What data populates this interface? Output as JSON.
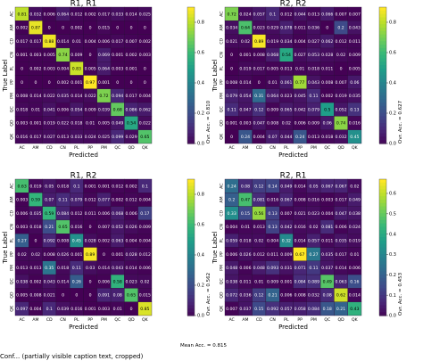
{
  "footer_caption": "Conf... (partially visible caption text, cropped)",
  "mean_accuracy": "Mean Acc. = 0.815",
  "chart_data": [
    {
      "type": "heatmap",
      "title": "R1, R1",
      "xlabel": "Predicted",
      "ylabel": "True Label",
      "labels": [
        "AC",
        "AM",
        "CD",
        "CN",
        "PL",
        "PP",
        "PM",
        "QC",
        "QD",
        "QK"
      ],
      "overall_accuracy": "Ovr. Acc. = 0.810",
      "colorbar_ticks": [
        "0.0",
        "0.2",
        "0.4",
        "0.6",
        "0.8"
      ],
      "vmax": 0.9,
      "matrix": [
        [
          "0.81",
          "0.032",
          "0.006",
          "0.064",
          "0.012",
          "0.002",
          "0.017",
          "0.033",
          "0.014",
          "0.025"
        ],
        [
          "0.002",
          "0.87",
          "0",
          "0",
          "0.002",
          "0",
          "0.015",
          "0",
          "0",
          "0"
        ],
        [
          "0.017",
          "0.017",
          "0.88",
          "0.014",
          "0.01",
          "0.004",
          "0.006",
          "0.017",
          "0.007",
          "0.002"
        ],
        [
          "0.001",
          "0.003",
          "0.005",
          "0.74",
          "0.009",
          "0",
          "0.069",
          "0.001",
          "0.002",
          "0.003"
        ],
        [
          "0",
          "0.002",
          "0.003",
          "0.004",
          "0.83",
          "0.005",
          "0.064",
          "0.003",
          "0.001",
          "0"
        ],
        [
          "0",
          "0",
          "0",
          "0.002",
          "0.001",
          "0.97",
          "0.001",
          "0",
          "0",
          "0"
        ],
        [
          "0.008",
          "0.014",
          "0.022",
          "0.035",
          "0.014",
          "0.022",
          "0.72",
          "0.094",
          "0.017",
          "0.004"
        ],
        [
          "0.018",
          "0.01",
          "0.041",
          "0.006",
          "0.054",
          "0.009",
          "0.039",
          "0.68",
          "0.086",
          "0.062"
        ],
        [
          "0.003",
          "0.001",
          "0.019",
          "0.022",
          "0.018",
          "0.01",
          "0.005",
          "0.049",
          "0.54",
          "0.022"
        ],
        [
          "0.016",
          "0.017",
          "0.027",
          "0.013",
          "0.033",
          "0.024",
          "0.025",
          "0.099",
          "0.029",
          "0.65"
        ]
      ]
    },
    {
      "type": "heatmap",
      "title": "R2, R2",
      "xlabel": "Predicted",
      "ylabel": "True Label",
      "labels": [
        "AC",
        "AM",
        "CD",
        "CN",
        "PL",
        "PP",
        "PM",
        "QC",
        "QD",
        "QK"
      ],
      "overall_accuracy": "Ovr. Acc. = 0.627",
      "colorbar_ticks": [
        "0.0",
        "0.2",
        "0.4",
        "0.6",
        "0.8"
      ],
      "vmax": 0.9,
      "matrix": [
        [
          "0.72",
          "0.024",
          "0.057",
          "0.1",
          "0.012",
          "0.044",
          "0.013",
          "0.066",
          "0.007",
          "0.007"
        ],
        [
          "0.034",
          "0.64",
          "0.023",
          "0.029",
          "0.078",
          "0.011",
          "0.036",
          "0",
          "0.2",
          "0.043"
        ],
        [
          "0.021",
          "0.02",
          "0.89",
          "0.019",
          "0.034",
          "0.004",
          "0.027",
          "0.062",
          "0.012",
          "0.011"
        ],
        [
          "0",
          "0.001",
          "0.008",
          "0.068",
          "0.54",
          "0.027",
          "0.053",
          "0.028",
          "0.02",
          "0.009"
        ],
        [
          "0",
          "0.019",
          "0.017",
          "0.005",
          "0.013",
          "0.01",
          "0.018",
          "0.011",
          "0",
          "0.005"
        ],
        [
          "0.008",
          "0.014",
          "0",
          "0.01",
          "0.061",
          "0.77",
          "0.043",
          "0.008",
          "0.007",
          "0.06"
        ],
        [
          "0.079",
          "0.054",
          "0.31",
          "0.064",
          "0.023",
          "0.045",
          "0.11",
          "0.002",
          "0.019",
          "0.035"
        ],
        [
          "0.11",
          "0.047",
          "0.12",
          "0.009",
          "0.065",
          "0.042",
          "0.079",
          "0.5",
          "0.052",
          "0.13"
        ],
        [
          "0.001",
          "0.003",
          "0.047",
          "0.008",
          "0.02",
          "0.006",
          "0.009",
          "0.06",
          "0.74",
          "0.016"
        ],
        [
          "0",
          "0.24",
          "0.004",
          "0.07",
          "0.044",
          "0.24",
          "0.013",
          "0.018",
          "0.032",
          "0.45"
        ]
      ]
    },
    {
      "type": "heatmap",
      "title": "R1, R2",
      "xlabel": "Predicted",
      "ylabel": "True Label",
      "labels": [
        "AC",
        "AM",
        "CD",
        "CN",
        "PL",
        "PP",
        "PM",
        "QC",
        "QD",
        "QK"
      ],
      "overall_accuracy": "Ovr. Acc. = 0.562",
      "colorbar_ticks": [
        "0.0",
        "0.2",
        "0.4",
        "0.6",
        "0.8"
      ],
      "vmax": 0.9,
      "matrix": [
        [
          "0.63",
          "0.019",
          "0.05",
          "0.018",
          "0.1",
          "0.001",
          "0.001",
          "0.012",
          "0.002",
          "0.1"
        ],
        [
          "0.003",
          "0.59",
          "0.07",
          "0.11",
          "0.079",
          "0.012",
          "0.077",
          "0.002",
          "0.012",
          "0.004"
        ],
        [
          "0.006",
          "0.035",
          "0.59",
          "0.084",
          "0.012",
          "0.011",
          "0.006",
          "0.068",
          "0.006",
          "0.17"
        ],
        [
          "0.003",
          "0.018",
          "0.21",
          "0.65",
          "0.016",
          "0",
          "0.007",
          "0.052",
          "0.026",
          "0.009"
        ],
        [
          "0.27",
          "0",
          "0.092",
          "0.008",
          "0.45",
          "0.028",
          "0.002",
          "0.063",
          "0.004",
          "0.004"
        ],
        [
          "0.02",
          "0.02",
          "0.008",
          "0.026",
          "0.001",
          "0.89",
          "0",
          "0.001",
          "0.028",
          "0.012"
        ],
        [
          "0.013",
          "0.013",
          "0.35",
          "0.018",
          "0.11",
          "0.03",
          "0.014",
          "0.043",
          "0.014",
          "0.006"
        ],
        [
          "0.038",
          "0.002",
          "0.043",
          "0.014",
          "0.26",
          "0",
          "0.006",
          "0.58",
          "0.023",
          "0.02"
        ],
        [
          "0.005",
          "0.008",
          "0.021",
          "0",
          "0",
          "0",
          "0.091",
          "0.08",
          "0.65",
          "0.015"
        ],
        [
          "0.097",
          "0.004",
          "0.1",
          "0.039",
          "0.016",
          "0.001",
          "0.003",
          "0.01",
          "0",
          "0.85"
        ]
      ]
    },
    {
      "type": "heatmap",
      "title": "R2, R1",
      "xlabel": "Predicted",
      "ylabel": "True Label",
      "labels": [
        "AC",
        "AM",
        "CD",
        "CN",
        "PL",
        "PP",
        "PM",
        "QC",
        "QD",
        "QK"
      ],
      "overall_accuracy": "Ovr. Acc. = 0.453",
      "colorbar_ticks": [
        "0.0",
        "0.1",
        "0.2",
        "0.3",
        "0.4",
        "0.5",
        "0.6"
      ],
      "vmax": 0.67,
      "matrix": [
        [
          "0.24",
          "0.08",
          "0.12",
          "0.14",
          "0.049",
          "0.014",
          "0.05",
          "0.067",
          "0.067",
          "0.02"
        ],
        [
          "0.2",
          "0.47",
          "0.081",
          "0.016",
          "0.067",
          "0.008",
          "0.016",
          "0.003",
          "0.017",
          "0.049"
        ],
        [
          "0.33",
          "0.15",
          "0.56",
          "0.13",
          "0.007",
          "0.021",
          "0.023",
          "0.004",
          "0.047",
          "0.038"
        ],
        [
          "0.004",
          "0.01",
          "0.013",
          "0.13",
          "0.042",
          "0.016",
          "0.02",
          "0.081",
          "0.006",
          "0.024"
        ],
        [
          "0.059",
          "0.018",
          "0.02",
          "0.004",
          "0.32",
          "0.014",
          "0.057",
          "0.011",
          "0.035",
          "0.019"
        ],
        [
          "0.006",
          "0.026",
          "0.012",
          "0.011",
          "0.009",
          "0.67",
          "0.27",
          "0.035",
          "0.017",
          "0.01"
        ],
        [
          "0.048",
          "0.006",
          "0.048",
          "0.093",
          "0.031",
          "0.071",
          "0.11",
          "0.037",
          "0.014",
          "0.006"
        ],
        [
          "0.038",
          "0.011",
          "0.01",
          "0.009",
          "0.001",
          "0.084",
          "0.089",
          "0.49",
          "0.063",
          "0.16"
        ],
        [
          "0.072",
          "0.036",
          "0.12",
          "0.21",
          "0.006",
          "0.008",
          "0.032",
          "0.08",
          "0.62",
          "0.014"
        ],
        [
          "0.007",
          "0.037",
          "0.15",
          "0.092",
          "0.057",
          "0.058",
          "0.084",
          "0.18",
          "0.21",
          "0.43"
        ]
      ]
    }
  ]
}
